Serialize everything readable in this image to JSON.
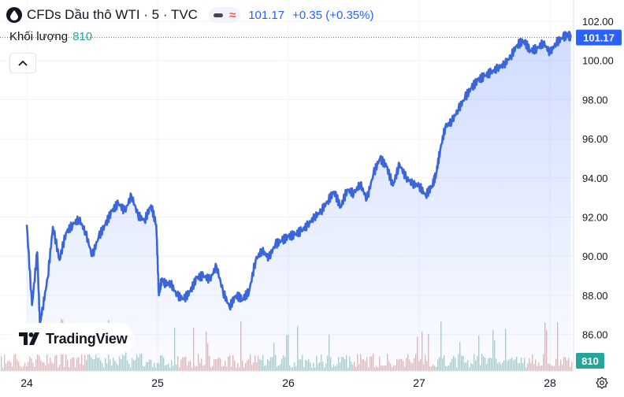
{
  "header": {
    "title": "CFDs Dầu thô WTI · 5 · TVC",
    "price": "101.17",
    "change": "+0.35 (+0.35%)"
  },
  "volume_legend": {
    "label": "Khối lượng",
    "value": "810"
  },
  "branding": {
    "text": "TradingView"
  },
  "colors": {
    "line": "#3a66d8",
    "volume_up": "#26a69a",
    "volume_down": "#ef5350",
    "price_badge": "#2962ff",
    "volume_badge": "#26a69a"
  },
  "icons": {
    "symbol": "drop-icon",
    "collapse": "chevron-up-icon",
    "settings": "gear-icon"
  },
  "chart_data": {
    "type": "area",
    "x_ticks": [
      "24",
      "25",
      "26",
      "27",
      "28"
    ],
    "y_ticks": [
      "102.00",
      "100.00",
      "98.00",
      "96.00",
      "94.00",
      "92.00",
      "90.00",
      "88.00",
      "86.00"
    ],
    "ylim": [
      85.6,
      102.2
    ],
    "last_price_label": "101.17",
    "volume_label": "810",
    "grid": true,
    "series": [
      {
        "x": [
          24.0,
          24.04,
          24.08,
          24.1,
          24.12,
          24.16,
          24.2,
          24.25,
          24.3,
          24.35,
          24.4,
          24.45,
          24.5,
          24.55,
          24.6,
          24.65,
          24.7,
          24.75,
          24.8,
          24.85,
          24.9,
          24.95,
          24.99,
          25.01,
          25.03,
          25.06,
          25.1,
          25.15,
          25.2,
          25.25,
          25.3,
          25.35,
          25.4,
          25.45,
          25.5,
          25.55,
          25.6,
          25.65,
          25.7,
          25.75,
          25.8,
          25.85,
          25.9,
          25.95,
          26.0,
          26.05,
          26.1,
          26.15,
          26.2,
          26.25,
          26.3,
          26.35,
          26.4,
          26.45,
          26.5,
          26.55,
          26.6,
          26.65,
          26.7,
          26.75,
          26.8,
          26.85,
          26.9,
          26.95,
          27.0,
          27.05,
          27.1,
          27.13,
          27.16,
          27.2,
          27.25,
          27.3,
          27.35,
          27.4,
          27.45,
          27.5,
          27.55,
          27.6,
          27.65,
          27.7,
          27.75,
          27.8,
          27.85,
          27.9,
          27.95,
          28.0,
          28.05,
          28.1,
          28.14,
          28.16
        ],
        "values": [
          91.6,
          87.5,
          90.2,
          86.5,
          87.3,
          88.9,
          91.5,
          89.8,
          91.2,
          91.6,
          91.9,
          91.2,
          90.0,
          91.0,
          91.6,
          92.3,
          92.7,
          92.3,
          93.1,
          92.1,
          91.8,
          92.6,
          91.6,
          88.0,
          88.8,
          88.6,
          88.6,
          88.0,
          87.8,
          88.2,
          88.9,
          89.0,
          88.8,
          89.5,
          88.2,
          87.4,
          88.0,
          87.8,
          88.2,
          89.8,
          90.3,
          89.9,
          90.6,
          90.8,
          91.0,
          91.1,
          91.3,
          91.6,
          92.0,
          92.3,
          92.8,
          93.3,
          92.5,
          93.4,
          93.2,
          93.7,
          92.9,
          94.2,
          95.0,
          94.6,
          93.6,
          94.7,
          94.0,
          93.7,
          93.6,
          93.1,
          93.6,
          94.2,
          95.4,
          96.6,
          96.9,
          97.5,
          98.1,
          98.6,
          99.0,
          99.2,
          99.4,
          99.6,
          99.8,
          100.2,
          100.8,
          101.0,
          100.5,
          100.6,
          100.9,
          100.4,
          100.9,
          101.2,
          101.3,
          101.17
        ]
      }
    ]
  }
}
